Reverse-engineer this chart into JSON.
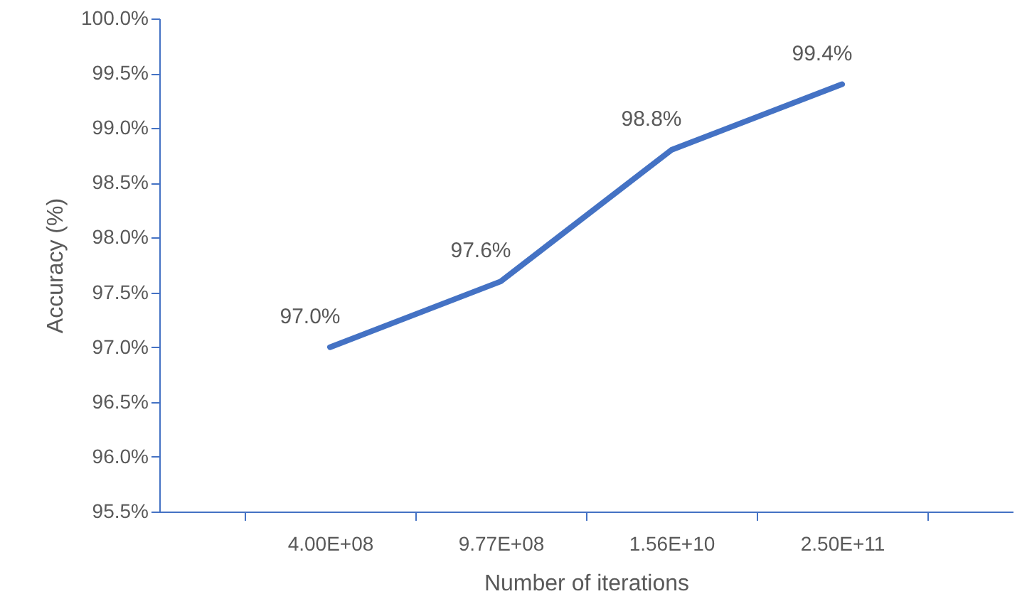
{
  "chart_data": {
    "type": "line",
    "xlabel": "Number of iterations",
    "ylabel": "Accuracy (%)",
    "categories": [
      "4.00E+08",
      "9.77E+08",
      "1.56E+10",
      "2.50E+11"
    ],
    "series": [
      {
        "color": "#4472c4",
        "values": [
          97.0,
          97.6,
          98.8,
          99.4
        ],
        "value_labels": [
          "97.0%",
          "97.6%",
          "98.8%",
          "99.4%"
        ]
      }
    ],
    "ylim": [
      95.5,
      100.0
    ],
    "yticks": [
      {
        "value": 95.5,
        "label": "95.5%"
      },
      {
        "value": 96.0,
        "label": "96.0%"
      },
      {
        "value": 96.5,
        "label": "96.5%"
      },
      {
        "value": 97.0,
        "label": "97.0%"
      },
      {
        "value": 97.5,
        "label": "97.5%"
      },
      {
        "value": 98.0,
        "label": "98.0%"
      },
      {
        "value": 98.5,
        "label": "98.5%"
      },
      {
        "value": 99.0,
        "label": "99.0%"
      },
      {
        "value": 99.5,
        "label": "99.5%"
      },
      {
        "value": 100.0,
        "label": "100.0%"
      }
    ],
    "grid": false,
    "marker": "none",
    "line_style": "solid"
  }
}
